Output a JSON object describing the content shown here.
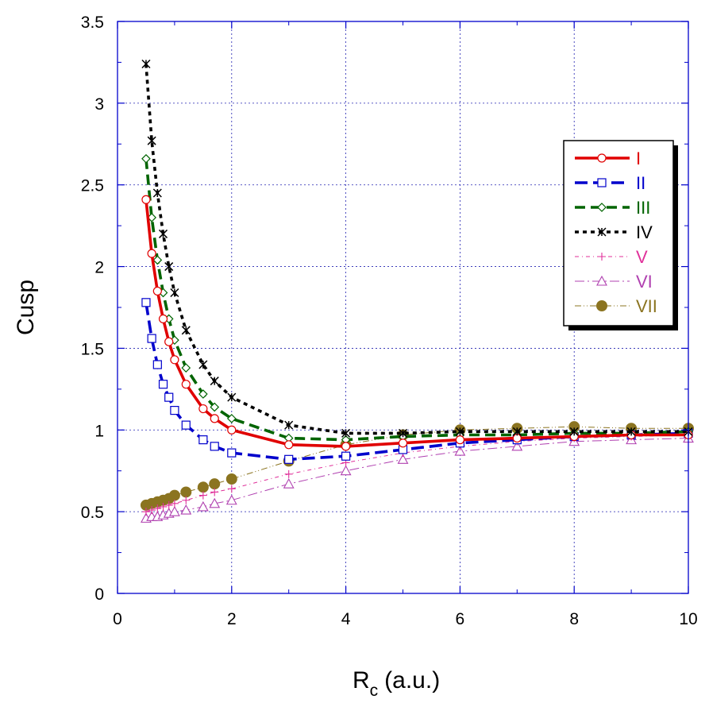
{
  "chart_data": {
    "type": "line",
    "title": "",
    "xlabel": "R",
    "xlabel_subscript": "c",
    "xlabel_units": "(a.u.)",
    "ylabel": "Cusp",
    "xlim": [
      0,
      10
    ],
    "ylim": [
      0,
      3.5
    ],
    "xticks": [
      0,
      2,
      4,
      6,
      8,
      10
    ],
    "yticks": [
      0,
      0.5,
      1,
      1.5,
      2,
      2.5,
      3,
      3.5
    ],
    "xtick_labels": [
      "0",
      "2",
      "4",
      "6",
      "8",
      "10"
    ],
    "ytick_labels": [
      "0",
      "0.5",
      "1",
      "1.5",
      "2",
      "2.5",
      "3",
      "3.5"
    ],
    "grid": true,
    "legend_position": "top-right",
    "series": [
      {
        "name": "I",
        "color": "#e00000",
        "dash": "solid",
        "marker": "circle",
        "x": [
          0.5,
          0.6,
          0.7,
          0.8,
          0.9,
          1.0,
          1.2,
          1.5,
          1.7,
          2.0,
          3.0,
          4.0,
          5.0,
          6.0,
          7.0,
          8.0,
          9.0,
          10.0
        ],
        "y": [
          2.41,
          2.08,
          1.85,
          1.68,
          1.54,
          1.43,
          1.28,
          1.13,
          1.07,
          1.0,
          0.91,
          0.9,
          0.92,
          0.94,
          0.95,
          0.96,
          0.97,
          0.97
        ]
      },
      {
        "name": "II",
        "color": "#0000cc",
        "dash": "longdash",
        "marker": "square",
        "x": [
          0.5,
          0.6,
          0.7,
          0.8,
          0.9,
          1.0,
          1.2,
          1.5,
          1.7,
          2.0,
          3.0,
          4.0,
          5.0,
          6.0,
          7.0,
          8.0,
          9.0,
          10.0
        ],
        "y": [
          1.78,
          1.56,
          1.4,
          1.28,
          1.2,
          1.12,
          1.03,
          0.94,
          0.9,
          0.86,
          0.82,
          0.84,
          0.88,
          0.92,
          0.94,
          0.96,
          0.97,
          0.98
        ]
      },
      {
        "name": "III",
        "color": "#006400",
        "dash": "dash",
        "marker": "diamond",
        "x": [
          0.5,
          0.6,
          0.7,
          0.8,
          0.9,
          1.0,
          1.2,
          1.5,
          1.7,
          2.0,
          3.0,
          4.0,
          5.0,
          6.0,
          7.0,
          8.0,
          9.0,
          10.0
        ],
        "y": [
          2.66,
          2.3,
          2.04,
          1.84,
          1.68,
          1.55,
          1.38,
          1.22,
          1.14,
          1.07,
          0.95,
          0.94,
          0.96,
          0.97,
          0.97,
          0.98,
          0.98,
          0.99
        ]
      },
      {
        "name": "IV",
        "color": "#000000",
        "dash": "dot",
        "marker": "star",
        "x": [
          0.5,
          0.6,
          0.7,
          0.8,
          0.9,
          1.0,
          1.2,
          1.5,
          1.7,
          2.0,
          3.0,
          4.0,
          5.0,
          6.0,
          7.0,
          8.0,
          9.0,
          10.0
        ],
        "y": [
          3.24,
          2.77,
          2.45,
          2.2,
          2.0,
          1.84,
          1.61,
          1.4,
          1.3,
          1.2,
          1.03,
          0.98,
          0.98,
          0.99,
          0.99,
          0.99,
          0.99,
          0.99
        ]
      },
      {
        "name": "V",
        "color": "#e0309a",
        "dash": "dashdot",
        "marker": "plus",
        "x": [
          0.5,
          0.6,
          0.7,
          0.8,
          0.9,
          1.0,
          1.2,
          1.5,
          1.7,
          2.0,
          3.0,
          4.0,
          5.0,
          6.0,
          7.0,
          8.0,
          9.0,
          10.0
        ],
        "y": [
          0.5,
          0.51,
          0.52,
          0.53,
          0.54,
          0.55,
          0.57,
          0.6,
          0.62,
          0.64,
          0.73,
          0.8,
          0.86,
          0.9,
          0.93,
          0.95,
          0.96,
          0.97
        ]
      },
      {
        "name": "VI",
        "color": "#b040b0",
        "dash": "dashdot2",
        "marker": "triangle",
        "x": [
          0.5,
          0.6,
          0.7,
          0.8,
          0.9,
          1.0,
          1.2,
          1.5,
          1.7,
          2.0,
          3.0,
          4.0,
          5.0,
          6.0,
          7.0,
          8.0,
          9.0,
          10.0
        ],
        "y": [
          0.46,
          0.47,
          0.47,
          0.48,
          0.49,
          0.5,
          0.51,
          0.53,
          0.55,
          0.57,
          0.67,
          0.75,
          0.82,
          0.87,
          0.9,
          0.93,
          0.94,
          0.95
        ]
      },
      {
        "name": "VII",
        "color": "#8b7420",
        "dash": "dashdot3",
        "marker": "filled-circle",
        "x": [
          0.5,
          0.6,
          0.7,
          0.8,
          0.9,
          1.0,
          1.2,
          1.5,
          1.7,
          2.0,
          3.0,
          4.0,
          5.0,
          6.0,
          7.0,
          8.0,
          9.0,
          10.0
        ],
        "y": [
          0.54,
          0.55,
          0.56,
          0.57,
          0.58,
          0.6,
          0.62,
          0.65,
          0.67,
          0.7,
          0.81,
          0.91,
          0.97,
          1.0,
          1.01,
          1.02,
          1.01,
          1.01
        ]
      }
    ]
  }
}
